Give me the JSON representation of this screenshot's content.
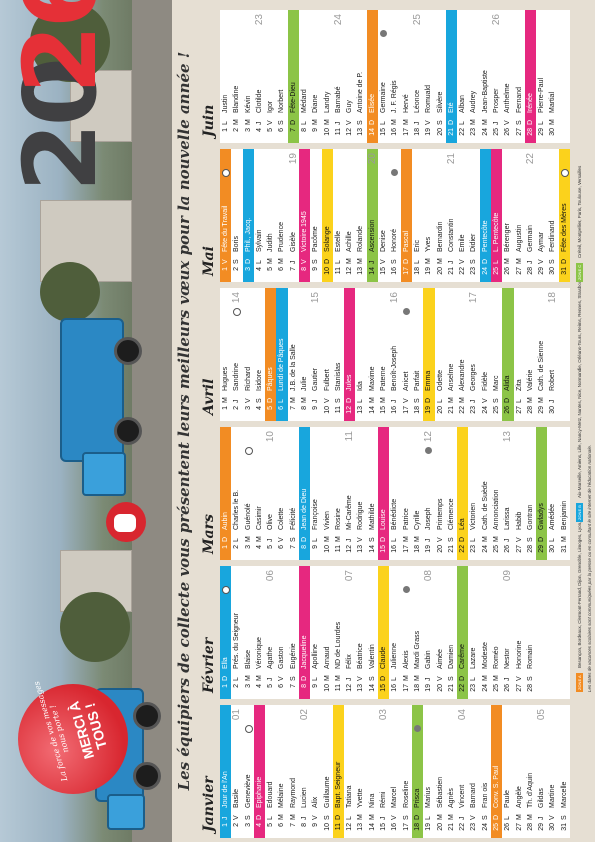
{
  "year": {
    "d1": "20",
    "d2": "26"
  },
  "tagline": "Les équipiers de collecte vous présentent leurs meilleurs vœux pour la nouvelle année !",
  "heart": {
    "sub": "La force de vos messages nous porte !",
    "merci": "MERCI À TOUS !"
  },
  "colors": {
    "blue": "#18a6dd",
    "orange": "#f28c23",
    "green": "#8cc447",
    "magenta": "#e6287f",
    "yellow": "#fbd21c"
  },
  "months": [
    {
      "name": "Janvier",
      "days": [
        {
          "n": "1",
          "l": "J",
          "s": "Jour de l'An",
          "hl": "blue"
        },
        {
          "n": "2",
          "l": "V",
          "s": "Basile",
          "wk": "01"
        },
        {
          "n": "3",
          "l": "S",
          "s": "Geneviève",
          "moon": "full"
        },
        {
          "n": "4",
          "l": "D",
          "s": "Epiphanie",
          "hl": "magenta"
        },
        {
          "n": "5",
          "l": "L",
          "s": "Edouard"
        },
        {
          "n": "6",
          "l": "M",
          "s": "Mélaine"
        },
        {
          "n": "7",
          "l": "M",
          "s": "Raymond"
        },
        {
          "n": "8",
          "l": "J",
          "s": "Lucien",
          "wk": "02"
        },
        {
          "n": "9",
          "l": "V",
          "s": "Alix"
        },
        {
          "n": "10",
          "l": "S",
          "s": "Guillaume"
        },
        {
          "n": "11",
          "l": "D",
          "s": "Bapt. Seigneur",
          "hl": "yellow"
        },
        {
          "n": "12",
          "l": "L",
          "s": "Tatiana"
        },
        {
          "n": "13",
          "l": "M",
          "s": "Yvette"
        },
        {
          "n": "14",
          "l": "M",
          "s": "Nina"
        },
        {
          "n": "15",
          "l": "J",
          "s": "Rémi",
          "wk": "03"
        },
        {
          "n": "16",
          "l": "V",
          "s": "Marcel"
        },
        {
          "n": "17",
          "l": "S",
          "s": "Roseline"
        },
        {
          "n": "18",
          "l": "D",
          "s": "Prisca",
          "hl": "green",
          "moon": "new"
        },
        {
          "n": "19",
          "l": "L",
          "s": "Marius"
        },
        {
          "n": "20",
          "l": "M",
          "s": "Sébastien"
        },
        {
          "n": "21",
          "l": "M",
          "s": "Agnès"
        },
        {
          "n": "22",
          "l": "J",
          "s": "Vincent",
          "wk": "04"
        },
        {
          "n": "23",
          "l": "V",
          "s": "Barnard"
        },
        {
          "n": "24",
          "l": "S",
          "s": "Fran ois"
        },
        {
          "n": "25",
          "l": "D",
          "s": "Conv. S. Paul",
          "hl": "orange"
        },
        {
          "n": "26",
          "l": "L",
          "s": "Paule"
        },
        {
          "n": "27",
          "l": "M",
          "s": "Angèle"
        },
        {
          "n": "28",
          "l": "M",
          "s": "Th. d'Aquin"
        },
        {
          "n": "29",
          "l": "J",
          "s": "Gildas",
          "wk": "05"
        },
        {
          "n": "30",
          "l": "V",
          "s": "Martine"
        },
        {
          "n": "31",
          "l": "S",
          "s": "Marcelle"
        }
      ]
    },
    {
      "name": "Février",
      "days": [
        {
          "n": "1",
          "l": "D",
          "s": "Ella",
          "hl": "blue",
          "moon": "full"
        },
        {
          "n": "2",
          "l": "L",
          "s": "Prés. du Seigneur"
        },
        {
          "n": "3",
          "l": "M",
          "s": "Blaise"
        },
        {
          "n": "4",
          "l": "M",
          "s": "Véronique"
        },
        {
          "n": "5",
          "l": "J",
          "s": "Agathe",
          "wk": "06"
        },
        {
          "n": "6",
          "l": "V",
          "s": "Gaston"
        },
        {
          "n": "7",
          "l": "S",
          "s": "Eugénie"
        },
        {
          "n": "8",
          "l": "D",
          "s": "Jacqueline",
          "hl": "magenta"
        },
        {
          "n": "9",
          "l": "L",
          "s": "Apolline"
        },
        {
          "n": "10",
          "l": "M",
          "s": "Arnaud"
        },
        {
          "n": "11",
          "l": "M",
          "s": "ND de Lourdes"
        },
        {
          "n": "12",
          "l": "J",
          "s": "Félix",
          "wk": "07"
        },
        {
          "n": "13",
          "l": "V",
          "s": "Béatrice"
        },
        {
          "n": "14",
          "l": "S",
          "s": "Valentin"
        },
        {
          "n": "15",
          "l": "D",
          "s": "Claude",
          "hl": "yellow"
        },
        {
          "n": "16",
          "l": "L",
          "s": "Julienne"
        },
        {
          "n": "17",
          "l": "M",
          "s": "Alexis",
          "moon": "new"
        },
        {
          "n": "18",
          "l": "M",
          "s": "Mardi Grass"
        },
        {
          "n": "19",
          "l": "J",
          "s": "Gabin",
          "wk": "08"
        },
        {
          "n": "20",
          "l": "V",
          "s": "Aimée"
        },
        {
          "n": "21",
          "l": "S",
          "s": "Damien"
        },
        {
          "n": "22",
          "l": "D",
          "s": "Carême",
          "hl": "green"
        },
        {
          "n": "23",
          "l": "L",
          "s": "Lazare"
        },
        {
          "n": "24",
          "l": "M",
          "s": "Modeste"
        },
        {
          "n": "25",
          "l": "M",
          "s": "Roméo"
        },
        {
          "n": "26",
          "l": "J",
          "s": "Nestor",
          "wk": "09"
        },
        {
          "n": "27",
          "l": "V",
          "s": "Honorine"
        },
        {
          "n": "28",
          "l": "S",
          "s": "Romain"
        }
      ]
    },
    {
      "name": "Mars",
      "days": [
        {
          "n": "1",
          "l": "D",
          "s": "Aubin",
          "hl": "orange"
        },
        {
          "n": "2",
          "l": "L",
          "s": "Charles le B."
        },
        {
          "n": "3",
          "l": "M",
          "s": "Guénolé",
          "moon": "full"
        },
        {
          "n": "4",
          "l": "M",
          "s": "Casimir"
        },
        {
          "n": "5",
          "l": "J",
          "s": "Olive",
          "wk": "10"
        },
        {
          "n": "6",
          "l": "V",
          "s": "Colette"
        },
        {
          "n": "7",
          "l": "S",
          "s": "Félicité"
        },
        {
          "n": "8",
          "l": "D",
          "s": "Jean de Dieu",
          "hl": "blue"
        },
        {
          "n": "9",
          "l": "L",
          "s": "Françoise"
        },
        {
          "n": "10",
          "l": "M",
          "s": "Vivien"
        },
        {
          "n": "11",
          "l": "M",
          "s": "Rosine"
        },
        {
          "n": "12",
          "l": "J",
          "s": "Mi-Carême",
          "wk": "11"
        },
        {
          "n": "13",
          "l": "V",
          "s": "Rodrigue"
        },
        {
          "n": "14",
          "l": "S",
          "s": "Mathilde"
        },
        {
          "n": "15",
          "l": "D",
          "s": "Louise",
          "hl": "magenta"
        },
        {
          "n": "16",
          "l": "L",
          "s": "Bénédicte"
        },
        {
          "n": "17",
          "l": "M",
          "s": "Patrice"
        },
        {
          "n": "18",
          "l": "M",
          "s": "Cyrille"
        },
        {
          "n": "19",
          "l": "J",
          "s": "Joseph",
          "wk": "12",
          "moon": "new"
        },
        {
          "n": "20",
          "l": "V",
          "s": "Printemps"
        },
        {
          "n": "21",
          "l": "S",
          "s": "Clémence"
        },
        {
          "n": "22",
          "l": "D",
          "s": "Léa",
          "hl": "yellow"
        },
        {
          "n": "23",
          "l": "L",
          "s": "Victorien"
        },
        {
          "n": "24",
          "l": "M",
          "s": "Cath. de Suède"
        },
        {
          "n": "25",
          "l": "M",
          "s": "Annonciation"
        },
        {
          "n": "26",
          "l": "J",
          "s": "Larissa",
          "wk": "13"
        },
        {
          "n": "27",
          "l": "V",
          "s": "Habib"
        },
        {
          "n": "28",
          "l": "S",
          "s": "Gontran"
        },
        {
          "n": "29",
          "l": "D",
          "s": "Gwladys",
          "hl": "green"
        },
        {
          "n": "30",
          "l": "L",
          "s": "Amédée"
        },
        {
          "n": "31",
          "l": "M",
          "s": "Benjamin"
        }
      ]
    },
    {
      "name": "Avril",
      "days": [
        {
          "n": "1",
          "l": "M",
          "s": "Hugues"
        },
        {
          "n": "2",
          "l": "J",
          "s": "Sandrine",
          "wk": "14",
          "moon": "full"
        },
        {
          "n": "3",
          "l": "V",
          "s": "Richard"
        },
        {
          "n": "4",
          "l": "S",
          "s": "Isidore"
        },
        {
          "n": "5",
          "l": "D",
          "s": "Pâques",
          "hl": "orange"
        },
        {
          "n": "6",
          "l": "L",
          "s": "Lundi de Pâques",
          "hl": "blue"
        },
        {
          "n": "7",
          "l": "M",
          "s": "J.B. de la Salle"
        },
        {
          "n": "8",
          "l": "M",
          "s": "Julie"
        },
        {
          "n": "9",
          "l": "J",
          "s": "Gautier",
          "wk": "15"
        },
        {
          "n": "10",
          "l": "V",
          "s": "Fulbert"
        },
        {
          "n": "11",
          "l": "S",
          "s": "Stanislas"
        },
        {
          "n": "12",
          "l": "D",
          "s": "Jules",
          "hl": "magenta"
        },
        {
          "n": "13",
          "l": "L",
          "s": "Ida"
        },
        {
          "n": "14",
          "l": "M",
          "s": "Maxime"
        },
        {
          "n": "15",
          "l": "M",
          "s": "Paterne"
        },
        {
          "n": "16",
          "l": "J",
          "s": "Benoît-Joseph",
          "wk": "16"
        },
        {
          "n": "17",
          "l": "V",
          "s": "Anicet",
          "moon": "new"
        },
        {
          "n": "18",
          "l": "S",
          "s": "Parfait"
        },
        {
          "n": "19",
          "l": "D",
          "s": "Emma",
          "hl": "yellow"
        },
        {
          "n": "20",
          "l": "L",
          "s": "Odette"
        },
        {
          "n": "21",
          "l": "M",
          "s": "Anselme"
        },
        {
          "n": "22",
          "l": "M",
          "s": "Alexandre"
        },
        {
          "n": "23",
          "l": "J",
          "s": "Georges",
          "wk": "17"
        },
        {
          "n": "24",
          "l": "V",
          "s": "Fidèle"
        },
        {
          "n": "25",
          "l": "S",
          "s": "Marc"
        },
        {
          "n": "26",
          "l": "D",
          "s": "Alida",
          "hl": "green"
        },
        {
          "n": "27",
          "l": "L",
          "s": "Zita"
        },
        {
          "n": "28",
          "l": "M",
          "s": "Valérie"
        },
        {
          "n": "29",
          "l": "M",
          "s": "Cath. de Sienne"
        },
        {
          "n": "30",
          "l": "J",
          "s": "Robert",
          "wk": "18"
        }
      ]
    },
    {
      "name": "Mai",
      "days": [
        {
          "n": "1",
          "l": "V",
          "s": "Fête du Travail",
          "hl": "orange",
          "moon": "full"
        },
        {
          "n": "2",
          "l": "S",
          "s": "Boris"
        },
        {
          "n": "3",
          "l": "D",
          "s": "Phil., Jacq.",
          "hl": "blue"
        },
        {
          "n": "4",
          "l": "L",
          "s": "Sylvain"
        },
        {
          "n": "5",
          "l": "M",
          "s": "Judith"
        },
        {
          "n": "6",
          "l": "M",
          "s": "Prudence"
        },
        {
          "n": "7",
          "l": "J",
          "s": "Gisèle",
          "wk": "19"
        },
        {
          "n": "8",
          "l": "V",
          "s": "Victoire 1945",
          "hl": "magenta"
        },
        {
          "n": "9",
          "l": "S",
          "s": "Pacôme"
        },
        {
          "n": "10",
          "l": "D",
          "s": "Solange",
          "hl": "yellow"
        },
        {
          "n": "11",
          "l": "L",
          "s": "Estelle"
        },
        {
          "n": "12",
          "l": "M",
          "s": "Achille"
        },
        {
          "n": "13",
          "l": "M",
          "s": "Rolande"
        },
        {
          "n": "14",
          "l": "J",
          "s": "Ascension",
          "hl": "green",
          "wk": "20"
        },
        {
          "n": "15",
          "l": "V",
          "s": "Denise"
        },
        {
          "n": "16",
          "l": "S",
          "s": "Honoré",
          "moon": "new"
        },
        {
          "n": "17",
          "l": "D",
          "s": "Pascal",
          "hl": "orange"
        },
        {
          "n": "18",
          "l": "L",
          "s": "Eric"
        },
        {
          "n": "19",
          "l": "M",
          "s": "Yves"
        },
        {
          "n": "20",
          "l": "M",
          "s": "Bernardin"
        },
        {
          "n": "21",
          "l": "J",
          "s": "Constantin",
          "wk": "21"
        },
        {
          "n": "22",
          "l": "V",
          "s": "Emile"
        },
        {
          "n": "23",
          "l": "S",
          "s": "Didier"
        },
        {
          "n": "24",
          "l": "D",
          "s": "Pentecôte",
          "hl": "blue"
        },
        {
          "n": "25",
          "l": "L",
          "s": "L. Pentecôte",
          "hl": "magenta"
        },
        {
          "n": "26",
          "l": "M",
          "s": "Bérenger"
        },
        {
          "n": "27",
          "l": "M",
          "s": "Augustin"
        },
        {
          "n": "28",
          "l": "J",
          "s": "Germain",
          "wk": "22"
        },
        {
          "n": "29",
          "l": "V",
          "s": "Aymar"
        },
        {
          "n": "30",
          "l": "S",
          "s": "Ferdinand"
        },
        {
          "n": "31",
          "l": "D",
          "s": "Fête des Mères",
          "hl": "yellow",
          "moon": "full"
        }
      ]
    },
    {
      "name": "Juin",
      "days": [
        {
          "n": "1",
          "l": "L",
          "s": "Justin"
        },
        {
          "n": "2",
          "l": "M",
          "s": "Blandine"
        },
        {
          "n": "3",
          "l": "M",
          "s": "Kévin"
        },
        {
          "n": "4",
          "l": "J",
          "s": "Clotilde",
          "wk": "23"
        },
        {
          "n": "5",
          "l": "V",
          "s": "Igor"
        },
        {
          "n": "6",
          "l": "S",
          "s": "Norbert"
        },
        {
          "n": "7",
          "l": "D",
          "s": "Fête-Dieu",
          "hl": "green"
        },
        {
          "n": "8",
          "l": "L",
          "s": "Médard"
        },
        {
          "n": "9",
          "l": "M",
          "s": "Diane"
        },
        {
          "n": "10",
          "l": "M",
          "s": "Landry"
        },
        {
          "n": "11",
          "l": "J",
          "s": "Barnabé",
          "wk": "24"
        },
        {
          "n": "12",
          "l": "V",
          "s": "Guy"
        },
        {
          "n": "13",
          "l": "S",
          "s": "Antoine de P."
        },
        {
          "n": "14",
          "l": "D",
          "s": "Elisée",
          "hl": "orange"
        },
        {
          "n": "15",
          "l": "L",
          "s": "Germaine",
          "moon": "new"
        },
        {
          "n": "16",
          "l": "M",
          "s": "J. F. Régis"
        },
        {
          "n": "17",
          "l": "M",
          "s": "Hervé"
        },
        {
          "n": "18",
          "l": "J",
          "s": "Léonce",
          "wk": "25"
        },
        {
          "n": "19",
          "l": "V",
          "s": "Romuald"
        },
        {
          "n": "20",
          "l": "S",
          "s": "Silvère"
        },
        {
          "n": "21",
          "l": "D",
          "s": "Eté",
          "hl": "blue"
        },
        {
          "n": "22",
          "l": "L",
          "s": "Alban"
        },
        {
          "n": "23",
          "l": "M",
          "s": "Audrey"
        },
        {
          "n": "24",
          "l": "M",
          "s": "Jean-Baptiste"
        },
        {
          "n": "25",
          "l": "J",
          "s": "Prosper",
          "wk": "26"
        },
        {
          "n": "26",
          "l": "V",
          "s": "Anthelme"
        },
        {
          "n": "27",
          "l": "S",
          "s": "Fernand"
        },
        {
          "n": "28",
          "l": "D",
          "s": "Irénée",
          "hl": "magenta"
        },
        {
          "n": "29",
          "l": "L",
          "s": "Pierre-Paul"
        },
        {
          "n": "30",
          "l": "M",
          "s": "Martial"
        }
      ]
    }
  ],
  "footer": {
    "zones": [
      {
        "label": "ZONE A",
        "color": "#f28c23",
        "text": "Besançon, Bordeaux, Clermont-Ferrand, Dijon, Grenoble, Limoges, Lyon, Poitiers"
      },
      {
        "label": "ZONE B",
        "color": "#18a6dd",
        "text": "Aix-Marseille, Amiens, Lille, Nancy-Metz, Nantes, Nice, Normandie, Orléans-Tours, Reims, Rennes, Strasbourg"
      },
      {
        "label": "ZONE C",
        "color": "#8cc447",
        "text": "Créteil, Montpellier, Paris, Toulouse, Versailles"
      }
    ],
    "legal": "Les dates de vacances scolaires sont communiquées par la presse ou en consultant le site internet de l'éducation nationale."
  }
}
